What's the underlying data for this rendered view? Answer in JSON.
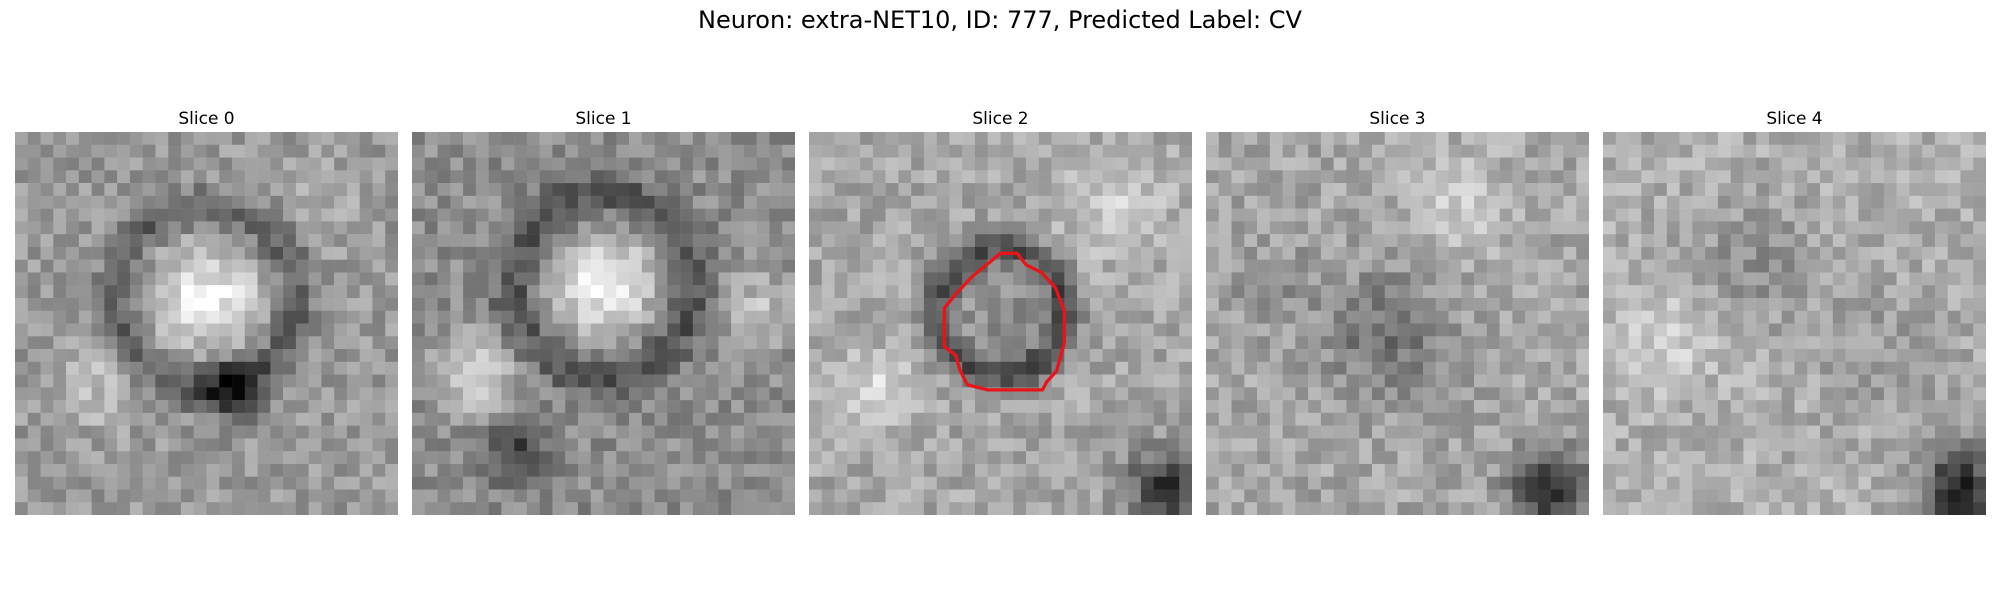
{
  "figure": {
    "title": "Neuron: extra-NET10, ID: 777, Predicted Label: CV"
  },
  "slices": [
    {
      "title": "Slice 0",
      "image": "grayscale-microscopy-slice-0",
      "roi": false
    },
    {
      "title": "Slice 1",
      "image": "grayscale-microscopy-slice-1",
      "roi": false
    },
    {
      "title": "Slice 2",
      "image": "grayscale-microscopy-slice-2",
      "roi": true,
      "roi_color": "#e8141a"
    },
    {
      "title": "Slice 3",
      "image": "grayscale-microscopy-slice-3",
      "roi": false
    },
    {
      "title": "Slice 4",
      "image": "grayscale-microscopy-slice-4",
      "roi": false
    }
  ]
}
